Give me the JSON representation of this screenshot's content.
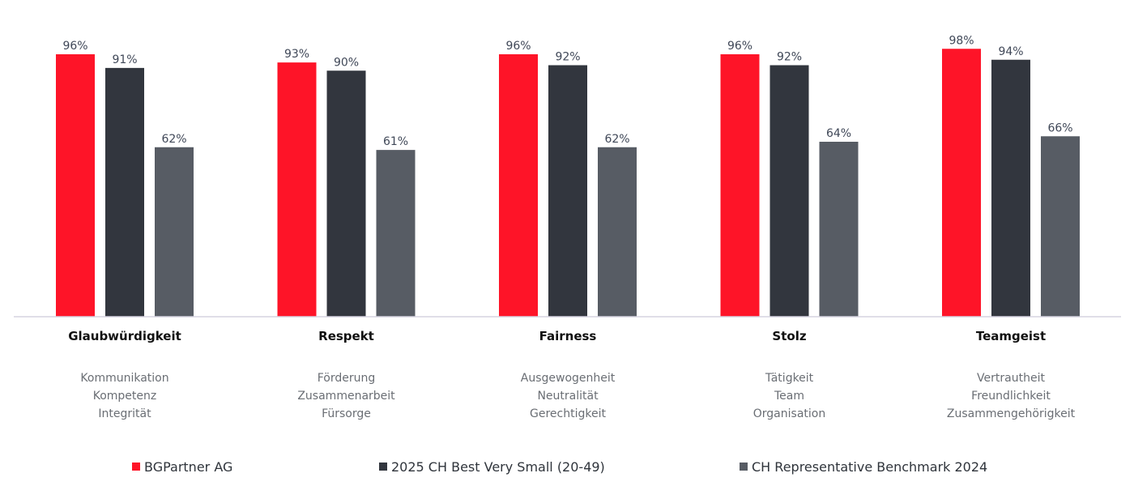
{
  "chart_data": {
    "type": "bar",
    "title": "",
    "xlabel": "",
    "ylabel": "",
    "ylim": [
      0,
      100
    ],
    "grid": false,
    "legend_position": "bottom",
    "categories": [
      "Glaubwürdigkeit",
      "Respekt",
      "Fairness",
      "Stolz",
      "Teamgeist"
    ],
    "subcategories": [
      [
        "Kommunikation",
        "Kompetenz",
        "Integrität"
      ],
      [
        "Förderung",
        "Zusammenarbeit",
        "Fürsorge"
      ],
      [
        "Ausgewogenheit",
        "Neutralität",
        "Gerechtigkeit"
      ],
      [
        "Tätigkeit",
        "Team",
        "Organisation"
      ],
      [
        "Vertrautheit",
        "Freundlichkeit",
        "Zusammengehörigkeit"
      ]
    ],
    "series": [
      {
        "name": "BGPartner AG",
        "color": "#fe1428",
        "values": [
          96,
          93,
          96,
          96,
          98
        ],
        "labels": [
          "96%",
          "93%",
          "96%",
          "96%",
          "98%"
        ]
      },
      {
        "name": "2025 CH Best Very Small (20-49)",
        "color": "#32363e",
        "values": [
          91,
          90,
          92,
          92,
          94
        ],
        "labels": [
          "91%",
          "90%",
          "92%",
          "92%",
          "94%"
        ]
      },
      {
        "name": "CH Representative Benchmark 2024",
        "color": "#575c64",
        "values": [
          62,
          61,
          62,
          64,
          66
        ],
        "labels": [
          "62%",
          "61%",
          "62%",
          "64%",
          "66%"
        ]
      }
    ]
  }
}
